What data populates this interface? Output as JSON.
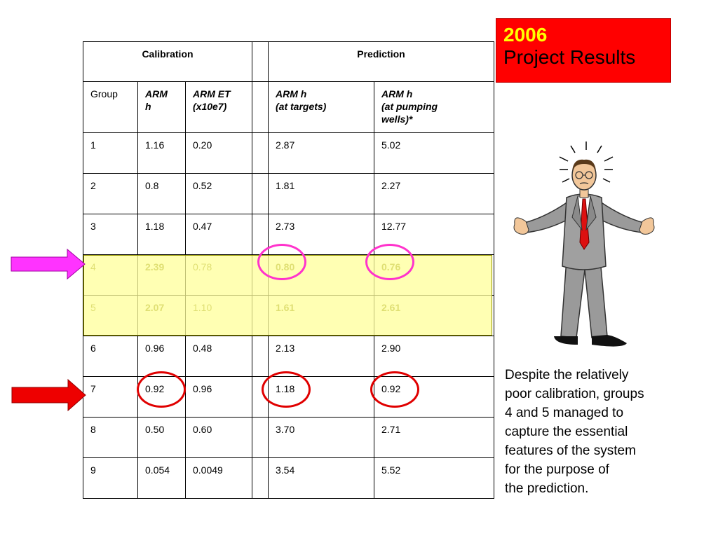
{
  "title": {
    "year": "2006",
    "text": "Project Results"
  },
  "table": {
    "group_headers": {
      "calibration": "Calibration",
      "prediction": "Prediction"
    },
    "columns": {
      "group": "Group",
      "arm_h": "ARM\nh",
      "arm_et": "ARM ET\n(x10e7)",
      "arm_h_targets": "ARM h\n(at targets)",
      "arm_h_wells": "ARM h\n(at pumping\nwells)*"
    },
    "rows": [
      {
        "group": "1",
        "arm_h": "1.16",
        "arm_et": "0.20",
        "targets": "2.87",
        "wells": "5.02"
      },
      {
        "group": "2",
        "arm_h": "0.8",
        "arm_et": "0.52",
        "targets": "1.81",
        "wells": "2.27"
      },
      {
        "group": "3",
        "arm_h": "1.18",
        "arm_et": "0.47",
        "targets": "2.73",
        "wells": "12.77"
      },
      {
        "group": "4",
        "arm_h": "2.39",
        "arm_et": "0.78",
        "targets": "0.80",
        "wells": "0.76"
      },
      {
        "group": "5",
        "arm_h": "2.07",
        "arm_et": "1.10",
        "targets": "1.61",
        "wells": "2.61"
      },
      {
        "group": "6",
        "arm_h": "0.96",
        "arm_et": "0.48",
        "targets": "2.13",
        "wells": "2.90"
      },
      {
        "group": "7",
        "arm_h": "0.92",
        "arm_et": "0.96",
        "targets": "1.18",
        "wells": "0.92"
      },
      {
        "group": "8",
        "arm_h": "0.50",
        "arm_et": "0.60",
        "targets": "3.70",
        "wells": "2.71"
      },
      {
        "group": "9",
        "arm_h": "0.054",
        "arm_et": "0.0049",
        "targets": "3.54",
        "wells": "5.52"
      }
    ]
  },
  "caption": "Despite the relatively\npoor calibration, groups\n4 and 5 managed to\ncapture the essential\nfeatures of the system\nfor the purpose of\nthe prediction.",
  "colors": {
    "title_bg": "#ff0000",
    "title_year": "#ffff00",
    "highlight": "#ffff99",
    "magenta_marker": "#ff33cc",
    "red_marker": "#e00000"
  },
  "icons": [
    "magenta-arrow-icon",
    "red-arrow-icon",
    "shrugging-man-illustration"
  ]
}
